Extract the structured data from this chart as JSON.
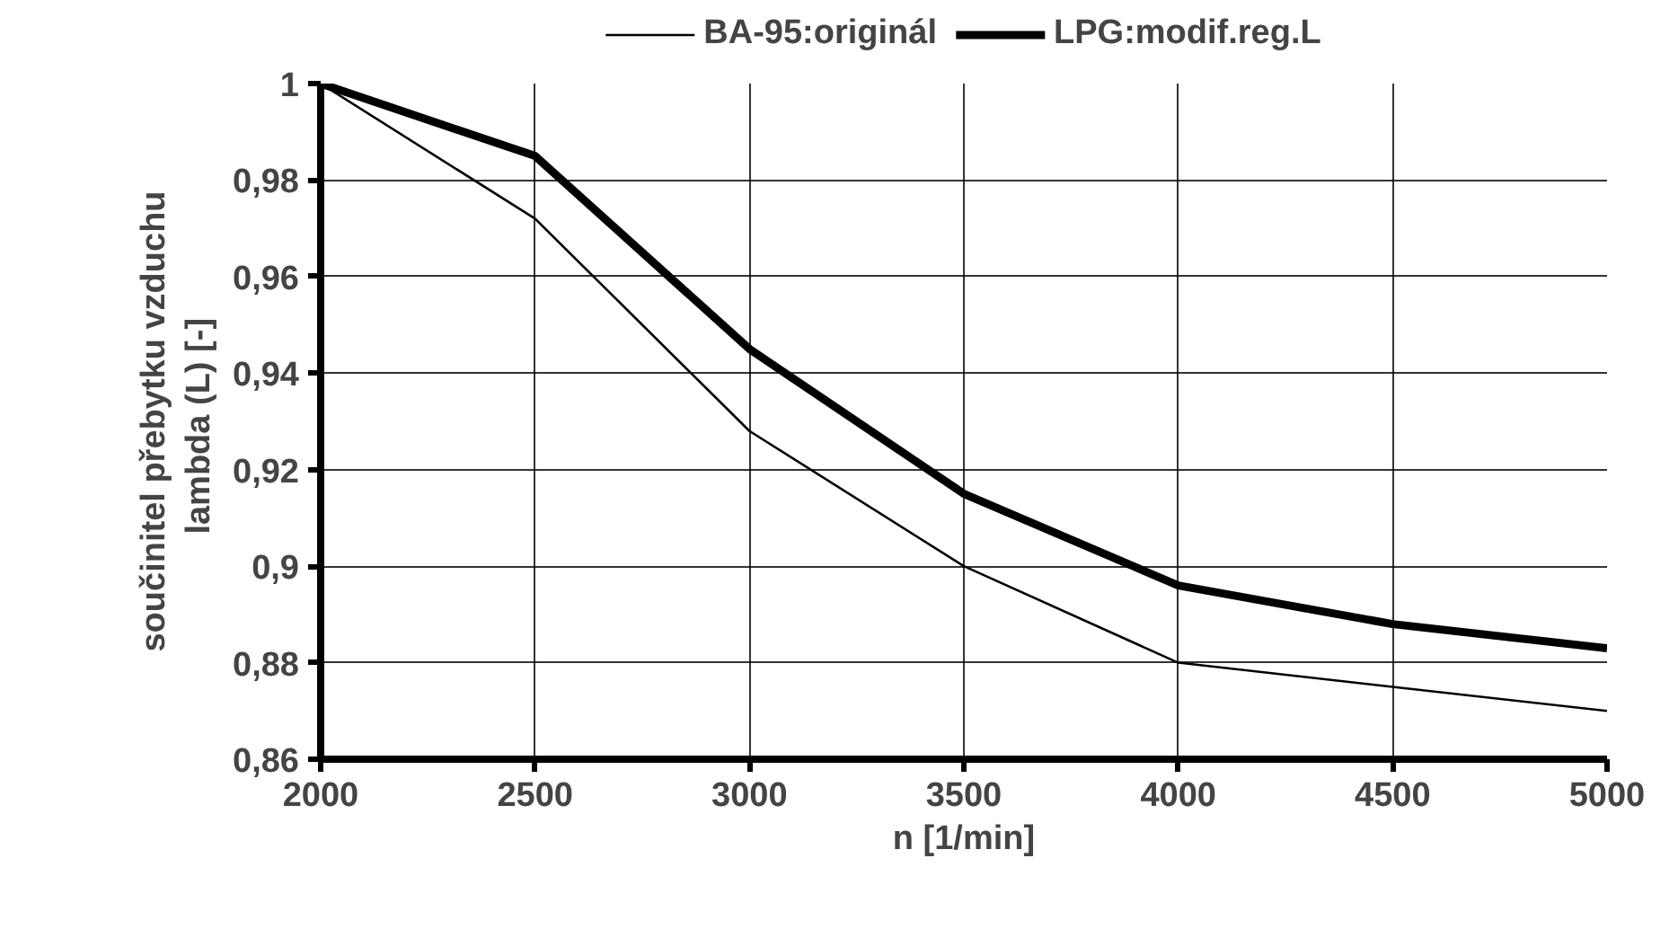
{
  "chart_data": {
    "type": "line",
    "xlabel": "n [1/min]",
    "ylabel": "součinitel přebytku vzduchu\nlambda (L)  [-]",
    "x": [
      2000,
      2500,
      3000,
      3500,
      4000,
      4500,
      5000
    ],
    "series": [
      {
        "name": "BA-95:originál",
        "color": "#000000",
        "values": [
          1,
          0.972,
          0.928,
          0.9,
          0.88,
          0.875,
          0.87
        ]
      },
      {
        "name": "LPG:modif.reg.L",
        "color": "#000000",
        "values": [
          1,
          0.985,
          0.945,
          0.915,
          0.896,
          0.888,
          0.883
        ]
      }
    ],
    "xlim": [
      2000,
      5000
    ],
    "ylim": [
      0.86,
      1
    ],
    "xticks": [
      2000,
      2500,
      3000,
      3500,
      4000,
      4500,
      5000
    ],
    "yticks": [
      {
        "value": 0.86,
        "label": "0,86"
      },
      {
        "value": 0.88,
        "label": "0,88"
      },
      {
        "value": 0.9,
        "label": "0,9"
      },
      {
        "value": 0.92,
        "label": "0,92"
      },
      {
        "value": 0.94,
        "label": "0,94"
      },
      {
        "value": 0.96,
        "label": "0,96"
      },
      {
        "value": 0.98,
        "label": "0,98"
      },
      {
        "value": 1,
        "label": "1"
      }
    ],
    "grid": true,
    "legend": "top",
    "marker": "none",
    "line_style": "solid"
  }
}
